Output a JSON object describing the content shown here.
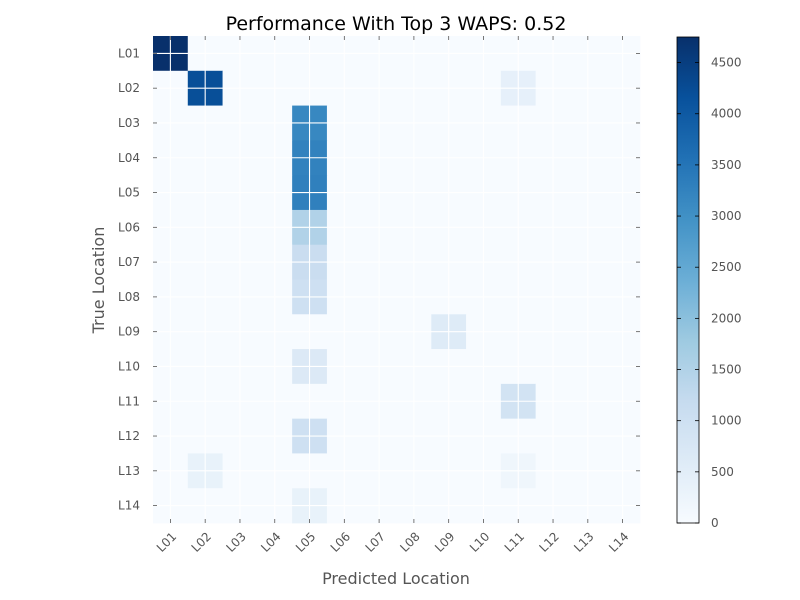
{
  "chart_data": {
    "type": "heatmap",
    "title": "Performance With Top 3 WAPS: 0.52",
    "xlabel": "Predicted Location",
    "ylabel": "True Location",
    "x_categories": [
      "L01",
      "L02",
      "L03",
      "L04",
      "L05",
      "L06",
      "L07",
      "L08",
      "L09",
      "L10",
      "L11",
      "L12",
      "L13",
      "L14"
    ],
    "y_categories": [
      "L01",
      "L02",
      "L03",
      "L04",
      "L05",
      "L06",
      "L07",
      "L08",
      "L09",
      "L10",
      "L11",
      "L12",
      "L13",
      "L14"
    ],
    "colormap": "Blues",
    "color_range": [
      0,
      4750
    ],
    "colorbar_ticks": [
      0,
      500,
      1000,
      1500,
      2000,
      2500,
      3000,
      3500,
      4000,
      4500
    ],
    "grid": true,
    "values": [
      [
        4750,
        0,
        0,
        0,
        0,
        0,
        0,
        0,
        0,
        0,
        0,
        0,
        0,
        0
      ],
      [
        0,
        4200,
        0,
        0,
        0,
        0,
        0,
        0,
        0,
        0,
        400,
        0,
        0,
        0
      ],
      [
        0,
        0,
        0,
        0,
        3150,
        0,
        0,
        0,
        0,
        0,
        0,
        0,
        0,
        0
      ],
      [
        0,
        0,
        0,
        0,
        3250,
        0,
        0,
        0,
        0,
        0,
        0,
        0,
        0,
        0
      ],
      [
        0,
        0,
        0,
        0,
        3300,
        0,
        0,
        0,
        0,
        0,
        0,
        0,
        0,
        0
      ],
      [
        0,
        0,
        0,
        0,
        1500,
        0,
        0,
        0,
        0,
        0,
        0,
        0,
        0,
        0
      ],
      [
        0,
        0,
        0,
        0,
        1100,
        0,
        0,
        0,
        0,
        0,
        0,
        0,
        0,
        0
      ],
      [
        0,
        0,
        0,
        0,
        1000,
        0,
        0,
        0,
        0,
        0,
        0,
        0,
        0,
        0
      ],
      [
        0,
        0,
        0,
        0,
        0,
        0,
        0,
        0,
        600,
        0,
        0,
        0,
        0,
        0
      ],
      [
        0,
        0,
        0,
        0,
        650,
        0,
        0,
        0,
        0,
        0,
        0,
        0,
        0,
        0
      ],
      [
        0,
        0,
        0,
        0,
        0,
        0,
        0,
        0,
        0,
        0,
        900,
        0,
        0,
        0
      ],
      [
        0,
        0,
        0,
        0,
        1000,
        0,
        0,
        0,
        0,
        0,
        0,
        0,
        0,
        0
      ],
      [
        0,
        350,
        0,
        0,
        0,
        0,
        0,
        0,
        0,
        0,
        200,
        0,
        0,
        0
      ],
      [
        0,
        0,
        0,
        0,
        350,
        0,
        0,
        0,
        0,
        0,
        0,
        0,
        0,
        0
      ]
    ]
  }
}
